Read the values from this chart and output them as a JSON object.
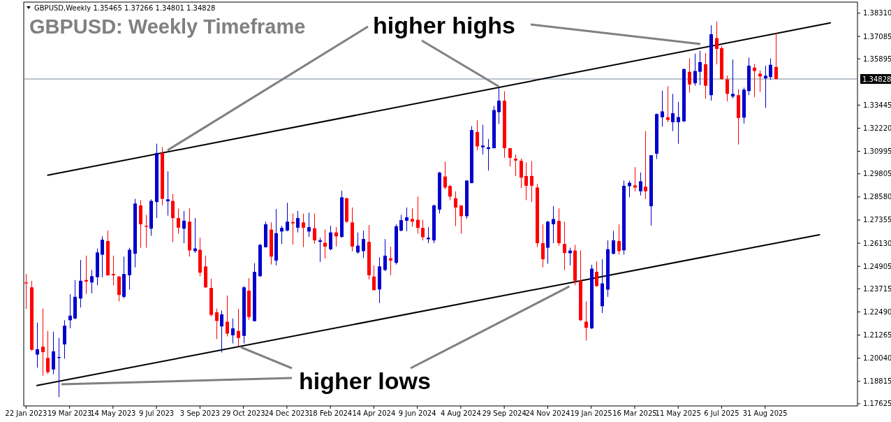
{
  "chart_data": {
    "type": "candlestick",
    "title": "GBPUSD: Weekly Timeframe",
    "annotations": [
      "GBPUSD,Weekly  1.35465 1.37266 1.34801 1.34828",
      {
        "text": "higher highs",
        "x": "2024-09-22",
        "y": 1.3443
      },
      {
        "text": "higher lows",
        "x": "2024-12-22",
        "y": 1.2384
      }
    ],
    "x": [
      "2023-01-22",
      "2023-01-29",
      "2023-02-05",
      "2023-02-12",
      "2023-02-19",
      "2023-02-26",
      "2023-03-05",
      "2023-03-12",
      "2023-03-19",
      "2023-03-26",
      "2023-04-02",
      "2023-04-09",
      "2023-04-16",
      "2023-04-23",
      "2023-04-30",
      "2023-05-07",
      "2023-05-14",
      "2023-05-21",
      "2023-05-28",
      "2023-06-04",
      "2023-06-11",
      "2023-06-18",
      "2023-06-25",
      "2023-07-02",
      "2023-07-09",
      "2023-07-16",
      "2023-07-23",
      "2023-07-30",
      "2023-08-06",
      "2023-08-13",
      "2023-08-20",
      "2023-08-27",
      "2023-09-03",
      "2023-09-10",
      "2023-09-17",
      "2023-09-24",
      "2023-10-01",
      "2023-10-08",
      "2023-10-15",
      "2023-10-22",
      "2023-10-29",
      "2023-11-05",
      "2023-11-12",
      "2023-11-19",
      "2023-11-26",
      "2023-12-03",
      "2023-12-10",
      "2023-12-17",
      "2023-12-24",
      "2023-12-31",
      "2024-01-07",
      "2024-01-14",
      "2024-01-21",
      "2024-01-28",
      "2024-02-04",
      "2024-02-11",
      "2024-02-18",
      "2024-02-25",
      "2024-03-03",
      "2024-03-10",
      "2024-03-17",
      "2024-03-24",
      "2024-03-31",
      "2024-04-07",
      "2024-04-14",
      "2024-04-21",
      "2024-04-28",
      "2024-05-05",
      "2024-05-12",
      "2024-05-19",
      "2024-05-26",
      "2024-06-02",
      "2024-06-09",
      "2024-06-16",
      "2024-06-23",
      "2024-06-30",
      "2024-07-07",
      "2024-07-14",
      "2024-07-21",
      "2024-07-28",
      "2024-08-04",
      "2024-08-11",
      "2024-08-18",
      "2024-08-25",
      "2024-09-01",
      "2024-09-08",
      "2024-09-15",
      "2024-09-22",
      "2024-09-29",
      "2024-10-06",
      "2024-10-13",
      "2024-10-20",
      "2024-10-27",
      "2024-11-03",
      "2024-11-10",
      "2024-11-17",
      "2024-11-24",
      "2024-12-01",
      "2024-12-08",
      "2024-12-15",
      "2024-12-22",
      "2024-12-29",
      "2025-01-05",
      "2025-01-12",
      "2025-01-19",
      "2025-01-26",
      "2025-02-02",
      "2025-02-09",
      "2025-02-16",
      "2025-02-23",
      "2025-03-02",
      "2025-03-09",
      "2025-03-16",
      "2025-03-23",
      "2025-03-30",
      "2025-04-06",
      "2025-04-13",
      "2025-04-20",
      "2025-04-27",
      "2025-05-04",
      "2025-05-11",
      "2025-05-18",
      "2025-05-25",
      "2025-06-01",
      "2025-06-08",
      "2025-06-15",
      "2025-06-22",
      "2025-06-29",
      "2025-07-06",
      "2025-07-13",
      "2025-07-20",
      "2025-07-27",
      "2025-08-03",
      "2025-08-10",
      "2025-08-17",
      "2025-08-24",
      "2025-08-31",
      "2025-09-07",
      "2025-09-14"
    ],
    "ohlc": [
      [
        1.2405,
        1.245,
        1.2265,
        1.24
      ],
      [
        1.2379,
        1.2414,
        1.2044,
        1.2048
      ],
      [
        1.2023,
        1.2193,
        1.1954,
        1.2051
      ],
      [
        1.2065,
        1.2267,
        1.1911,
        1.2036
      ],
      [
        1.2005,
        1.2148,
        1.192,
        1.193
      ],
      [
        1.1944,
        1.2144,
        1.1919,
        1.204
      ],
      [
        1.2005,
        1.2111,
        1.1798,
        1.201
      ],
      [
        1.2077,
        1.2205,
        1.2001,
        1.2176
      ],
      [
        1.2205,
        1.2343,
        1.2162,
        1.2229
      ],
      [
        1.2214,
        1.2418,
        1.2211,
        1.2329
      ],
      [
        1.232,
        1.2524,
        1.2272,
        1.2414
      ],
      [
        1.2418,
        1.2547,
        1.2343,
        1.241
      ],
      [
        1.2405,
        1.2471,
        1.2347,
        1.2438
      ],
      [
        1.2433,
        1.2585,
        1.239,
        1.2564
      ],
      [
        1.2552,
        1.2649,
        1.2433,
        1.2631
      ],
      [
        1.2624,
        1.268,
        1.244,
        1.2443
      ],
      [
        1.245,
        1.2547,
        1.239,
        1.2443
      ],
      [
        1.2436,
        1.244,
        1.2304,
        1.2339
      ],
      [
        1.2329,
        1.2542,
        1.2321,
        1.245
      ],
      [
        1.2443,
        1.2589,
        1.2367,
        1.2578
      ],
      [
        1.2557,
        1.2848,
        1.2485,
        1.2823
      ],
      [
        1.2813,
        1.2841,
        1.2589,
        1.2713
      ],
      [
        1.2705,
        1.2763,
        1.2589,
        1.27
      ],
      [
        1.269,
        1.2845,
        1.2652,
        1.2837
      ],
      [
        1.2831,
        1.314,
        1.2746,
        1.3091
      ],
      [
        1.3091,
        1.3122,
        1.2813,
        1.2848
      ],
      [
        1.2835,
        1.2994,
        1.2759,
        1.2845
      ],
      [
        1.2837,
        1.2874,
        1.2618,
        1.2746
      ],
      [
        1.2746,
        1.2797,
        1.2663,
        1.2695
      ],
      [
        1.269,
        1.2784,
        1.2613,
        1.2732
      ],
      [
        1.2727,
        1.2798,
        1.2542,
        1.2575
      ],
      [
        1.2571,
        1.2746,
        1.2561,
        1.2585
      ],
      [
        1.2578,
        1.2642,
        1.2438,
        1.2457
      ],
      [
        1.249,
        1.2547,
        1.2376,
        1.2379
      ],
      [
        1.2376,
        1.2424,
        1.2225,
        1.2233
      ],
      [
        1.2247,
        1.2267,
        1.2105,
        1.2201
      ],
      [
        1.2172,
        1.2257,
        1.2034,
        1.2236
      ],
      [
        1.2197,
        1.2336,
        1.2119,
        1.2134
      ],
      [
        1.2125,
        1.2214,
        1.2082,
        1.2162
      ],
      [
        1.2148,
        1.2265,
        1.2068,
        1.2111
      ],
      [
        1.2122,
        1.2386,
        1.2082,
        1.2379
      ],
      [
        1.2362,
        1.2428,
        1.2207,
        1.2222
      ],
      [
        1.22,
        1.2507,
        1.22,
        1.2461
      ],
      [
        1.2438,
        1.2609,
        1.2435,
        1.2604
      ],
      [
        1.2592,
        1.2727,
        1.2589,
        1.2713
      ],
      [
        1.2685,
        1.2723,
        1.25,
        1.2542
      ],
      [
        1.2521,
        1.2794,
        1.2495,
        1.2666
      ],
      [
        1.2675,
        1.2705,
        1.2609,
        1.2694
      ],
      [
        1.268,
        1.2827,
        1.2676,
        1.2727
      ],
      [
        1.2725,
        1.277,
        1.2606,
        1.2718
      ],
      [
        1.2695,
        1.2784,
        1.267,
        1.2746
      ],
      [
        1.2723,
        1.277,
        1.2592,
        1.2695
      ],
      [
        1.2675,
        1.2774,
        1.2646,
        1.2698
      ],
      [
        1.2692,
        1.277,
        1.2609,
        1.2628
      ],
      [
        1.262,
        1.2642,
        1.2514,
        1.2628
      ],
      [
        1.2615,
        1.2685,
        1.2532,
        1.2595
      ],
      [
        1.2581,
        1.2705,
        1.2575,
        1.267
      ],
      [
        1.267,
        1.2698,
        1.2595,
        1.2649
      ],
      [
        1.2646,
        1.2891,
        1.2642,
        1.2856
      ],
      [
        1.2851,
        1.2855,
        1.272,
        1.2727
      ],
      [
        1.2723,
        1.2802,
        1.257,
        1.2595
      ],
      [
        1.2564,
        1.267,
        1.2557,
        1.26
      ],
      [
        1.2571,
        1.268,
        1.2535,
        1.2635
      ],
      [
        1.262,
        1.2709,
        1.2421,
        1.2443
      ],
      [
        1.2436,
        1.2495,
        1.2364,
        1.2364
      ],
      [
        1.2368,
        1.2538,
        1.2296,
        1.249
      ],
      [
        1.2471,
        1.2635,
        1.2465,
        1.2547
      ],
      [
        1.2533,
        1.2595,
        1.2443,
        1.2521
      ],
      [
        1.2509,
        1.2713,
        1.25,
        1.2703
      ],
      [
        1.2679,
        1.2763,
        1.2676,
        1.2735
      ],
      [
        1.2732,
        1.2802,
        1.2676,
        1.275
      ],
      [
        1.2741,
        1.2797,
        1.27,
        1.2727
      ],
      [
        1.2737,
        1.286,
        1.2663,
        1.2694
      ],
      [
        1.2694,
        1.2737,
        1.2628,
        1.2645
      ],
      [
        1.2634,
        1.2698,
        1.2613,
        1.2642
      ],
      [
        1.2628,
        1.2817,
        1.2613,
        1.2813
      ],
      [
        1.2791,
        1.2991,
        1.277,
        1.2987
      ],
      [
        1.2966,
        1.3045,
        1.2898,
        1.2908
      ],
      [
        1.2916,
        1.2922,
        1.2841,
        1.286
      ],
      [
        1.2851,
        1.2887,
        1.2703,
        1.2802
      ],
      [
        1.2813,
        1.2813,
        1.2663,
        1.2756
      ],
      [
        1.2756,
        1.2945,
        1.2742,
        1.2945
      ],
      [
        1.2931,
        1.3233,
        1.2931,
        1.3212
      ],
      [
        1.3202,
        1.3264,
        1.3105,
        1.3126
      ],
      [
        1.3121,
        1.324,
        1.3083,
        1.313
      ],
      [
        1.3112,
        1.3165,
        1.2998,
        1.3121
      ],
      [
        1.3116,
        1.334,
        1.3116,
        1.3318
      ],
      [
        1.3307,
        1.3435,
        1.3244,
        1.3368
      ],
      [
        1.3368,
        1.3418,
        1.3065,
        1.3116
      ],
      [
        1.3116,
        1.3116,
        1.3019,
        1.3065
      ],
      [
        1.306,
        1.3083,
        1.2969,
        1.3051
      ],
      [
        1.3049,
        1.3062,
        1.2905,
        1.296
      ],
      [
        1.2969,
        1.3041,
        1.2841,
        1.2917
      ],
      [
        1.2969,
        1.3048,
        1.2831,
        1.2917
      ],
      [
        1.2908,
        1.2927,
        1.2592,
        1.2613
      ],
      [
        1.2613,
        1.2713,
        1.2485,
        1.2528
      ],
      [
        1.2589,
        1.2731,
        1.2504,
        1.2727
      ],
      [
        1.2713,
        1.2809,
        1.2613,
        1.2741
      ],
      [
        1.2731,
        1.2798,
        1.2599,
        1.2613
      ],
      [
        1.2609,
        1.2727,
        1.2471,
        1.2561
      ],
      [
        1.256,
        1.2589,
        1.2495,
        1.2574
      ],
      [
        1.2574,
        1.2604,
        1.239,
        1.2414
      ],
      [
        1.2414,
        1.2575,
        1.22,
        1.2205
      ],
      [
        1.2197,
        1.2304,
        1.2097,
        1.2165
      ],
      [
        1.2162,
        1.2499,
        1.2158,
        1.2478
      ],
      [
        1.2461,
        1.2517,
        1.2381,
        1.2386
      ],
      [
        1.2279,
        1.2528,
        1.2243,
        1.24
      ],
      [
        1.2367,
        1.2628,
        1.2329,
        1.2581
      ],
      [
        1.2557,
        1.2678,
        1.2553,
        1.2628
      ],
      [
        1.2624,
        1.2713,
        1.2552,
        1.2571
      ],
      [
        1.2575,
        1.2945,
        1.2552,
        1.2917
      ],
      [
        1.2915,
        1.2945,
        1.2856,
        1.2933
      ],
      [
        1.2919,
        1.3016,
        1.2888,
        1.2908
      ],
      [
        1.2888,
        1.2988,
        1.2866,
        1.2941
      ],
      [
        1.2912,
        1.3207,
        1.2848,
        1.2888
      ],
      [
        1.2809,
        1.3079,
        1.2706,
        1.3079
      ],
      [
        1.3087,
        1.33,
        1.3059,
        1.3297
      ],
      [
        1.328,
        1.3421,
        1.323,
        1.3311
      ],
      [
        1.328,
        1.3444,
        1.3254,
        1.3266
      ],
      [
        1.3254,
        1.3404,
        1.3207,
        1.3301
      ],
      [
        1.3254,
        1.3361,
        1.314,
        1.3281
      ],
      [
        1.3259,
        1.3539,
        1.3254,
        1.3535
      ],
      [
        1.3521,
        1.3592,
        1.3411,
        1.3454
      ],
      [
        1.346,
        1.3617,
        1.3447,
        1.3525
      ],
      [
        1.3521,
        1.3632,
        1.345,
        1.3572
      ],
      [
        1.3561,
        1.362,
        1.3378,
        1.3447
      ],
      [
        1.3397,
        1.3767,
        1.3368,
        1.372
      ],
      [
        1.3699,
        1.3788,
        1.356,
        1.3642
      ],
      [
        1.3646,
        1.3657,
        1.3478,
        1.3482
      ],
      [
        1.3481,
        1.3501,
        1.3364,
        1.3404
      ],
      [
        1.339,
        1.3586,
        1.338,
        1.3404
      ],
      [
        1.3397,
        1.3429,
        1.3136,
        1.3276
      ],
      [
        1.3278,
        1.3437,
        1.3247,
        1.3426
      ],
      [
        1.3419,
        1.3596,
        1.3397,
        1.3553
      ],
      [
        1.3543,
        1.3563,
        1.3387,
        1.3525
      ],
      [
        1.3511,
        1.3529,
        1.3415,
        1.3496
      ],
      [
        1.3486,
        1.3553,
        1.333,
        1.35
      ],
      [
        1.3493,
        1.3592,
        1.3478,
        1.3558
      ],
      [
        1.35465,
        1.37266,
        1.34801,
        1.34828
      ]
    ],
    "colors": [
      "#ff0000",
      "#ff0000",
      "#0000cc",
      "#ff0000",
      "#ff0000",
      "#0000cc",
      "#0000cc",
      "#0000cc",
      "#0000cc",
      "#0000cc",
      "#0000cc",
      "#ff0000",
      "#0000cc",
      "#0000cc",
      "#0000cc",
      "#ff0000",
      "#ff0000",
      "#ff0000",
      "#0000cc",
      "#0000cc",
      "#0000cc",
      "#ff0000",
      "#ff0000",
      "#0000cc",
      "#0000cc",
      "#ff0000",
      "#0000cc",
      "#ff0000",
      "#ff0000",
      "#0000cc",
      "#ff0000",
      "#0000cc",
      "#ff0000",
      "#ff0000",
      "#ff0000",
      "#ff0000",
      "#0000cc",
      "#ff0000",
      "#0000cc",
      "#ff0000",
      "#0000cc",
      "#ff0000",
      "#0000cc",
      "#0000cc",
      "#0000cc",
      "#ff0000",
      "#0000cc",
      "#0000cc",
      "#0000cc",
      "#ff0000",
      "#0000cc",
      "#ff0000",
      "#0000cc",
      "#ff0000",
      "#0000cc",
      "#ff0000",
      "#0000cc",
      "#ff0000",
      "#0000cc",
      "#ff0000",
      "#ff0000",
      "#0000cc",
      "#0000cc",
      "#ff0000",
      "#ff0000",
      "#0000cc",
      "#0000cc",
      "#ff0000",
      "#0000cc",
      "#0000cc",
      "#0000cc",
      "#ff0000",
      "#ff0000",
      "#ff0000",
      "#0000cc",
      "#0000cc",
      "#0000cc",
      "#ff0000",
      "#ff0000",
      "#ff0000",
      "#ff0000",
      "#0000cc",
      "#0000cc",
      "#ff0000",
      "#0000cc",
      "#0000cc",
      "#0000cc",
      "#0000cc",
      "#ff0000",
      "#ff0000",
      "#ff0000",
      "#ff0000",
      "#ff0000",
      "#ff0000",
      "#ff0000",
      "#ff0000",
      "#0000cc",
      "#0000cc",
      "#ff0000",
      "#ff0000",
      "#0000cc",
      "#ff0000",
      "#ff0000",
      "#ff0000",
      "#0000cc",
      "#ff0000",
      "#0000cc",
      "#0000cc",
      "#0000cc",
      "#ff0000",
      "#0000cc",
      "#0000cc",
      "#ff0000",
      "#0000cc",
      "#ff0000",
      "#0000cc",
      "#0000cc",
      "#0000cc",
      "#ff0000",
      "#0000cc",
      "#0000cc",
      "#0000cc",
      "#ff0000",
      "#0000cc",
      "#0000cc",
      "#ff0000",
      "#0000cc",
      "#ff0000",
      "#ff0000",
      "#ff0000",
      "#0000cc",
      "#ff0000",
      "#0000cc",
      "#0000cc",
      "#ff0000",
      "#ff0000",
      "#0000cc",
      "#0000cc",
      "#ff0000"
    ],
    "series": [
      {
        "type": "line",
        "color": "#000000",
        "x": [
          "2023-02-19",
          "2025-11-23"
        ],
        "values": [
          1.2973,
          1.378
        ]
      },
      {
        "type": "line",
        "color": "#000000",
        "x": [
          "2023-02-05",
          "2025-11-09"
        ],
        "values": [
          1.1859,
          1.2658
        ]
      }
    ],
    "xlim": [
      "2023-01-19",
      "2025-12-28"
    ],
    "xticks": [
      {
        "value": "2023-01-22",
        "label": "22 Jan 2023"
      },
      {
        "value": "2023-03-19",
        "label": "19 Mar 2023"
      },
      {
        "value": "2023-05-14",
        "label": "14 May 2023"
      },
      {
        "value": "2023-07-09",
        "label": "9 Jul 2023"
      },
      {
        "value": "2023-09-03",
        "label": "3 Sep 2023"
      },
      {
        "value": "2023-10-29",
        "label": "29 Oct 2023"
      },
      {
        "value": "2023-12-24",
        "label": "24 Dec 2023"
      },
      {
        "value": "2024-02-18",
        "label": "18 Feb 2024"
      },
      {
        "value": "2024-04-14",
        "label": "14 Apr 2024"
      },
      {
        "value": "2024-06-09",
        "label": "9 Jun 2024"
      },
      {
        "value": "2024-08-04",
        "label": "4 Aug 2024"
      },
      {
        "value": "2024-09-29",
        "label": "29 Sep 2024"
      },
      {
        "value": "2024-11-24",
        "label": "24 Nov 2024"
      },
      {
        "value": "2025-01-19",
        "label": "19 Jan 2025"
      },
      {
        "value": "2025-03-16",
        "label": "16 Mar 2025"
      },
      {
        "value": "2025-05-11",
        "label": "11 May 2025"
      },
      {
        "value": "2025-07-06",
        "label": "6 Jul 2025"
      },
      {
        "value": "2025-08-31",
        "label": "31 Aug 2025"
      }
    ],
    "ylim": [
      1.1751,
      1.389
    ],
    "yticks": [
      {
        "value": 1.3831,
        "label": "1.38310"
      },
      {
        "value": 1.37085,
        "label": "1.37085"
      },
      {
        "value": 1.35895,
        "label": "1.35895"
      },
      {
        "value": 1.33445,
        "label": "1.33445"
      },
      {
        "value": 1.3222,
        "label": "1.32220"
      },
      {
        "value": 1.30995,
        "label": "1.30995"
      },
      {
        "value": 1.29805,
        "label": "1.29805"
      },
      {
        "value": 1.2858,
        "label": "1.28580"
      },
      {
        "value": 1.27355,
        "label": "1.27355"
      },
      {
        "value": 1.2613,
        "label": "1.26130"
      },
      {
        "value": 1.24905,
        "label": "1.24905"
      },
      {
        "value": 1.23715,
        "label": "1.23715"
      },
      {
        "value": 1.2249,
        "label": "1.22490"
      },
      {
        "value": 1.21265,
        "label": "1.21265"
      },
      {
        "value": 1.2004,
        "label": "1.20040"
      },
      {
        "value": 1.18815,
        "label": "1.18815"
      },
      {
        "value": 1.17625,
        "label": "1.17625"
      }
    ],
    "ref_lines": [
      {
        "axis": "y",
        "value": 1.34828,
        "label": "1.34828",
        "color": "#778899"
      }
    ]
  }
}
